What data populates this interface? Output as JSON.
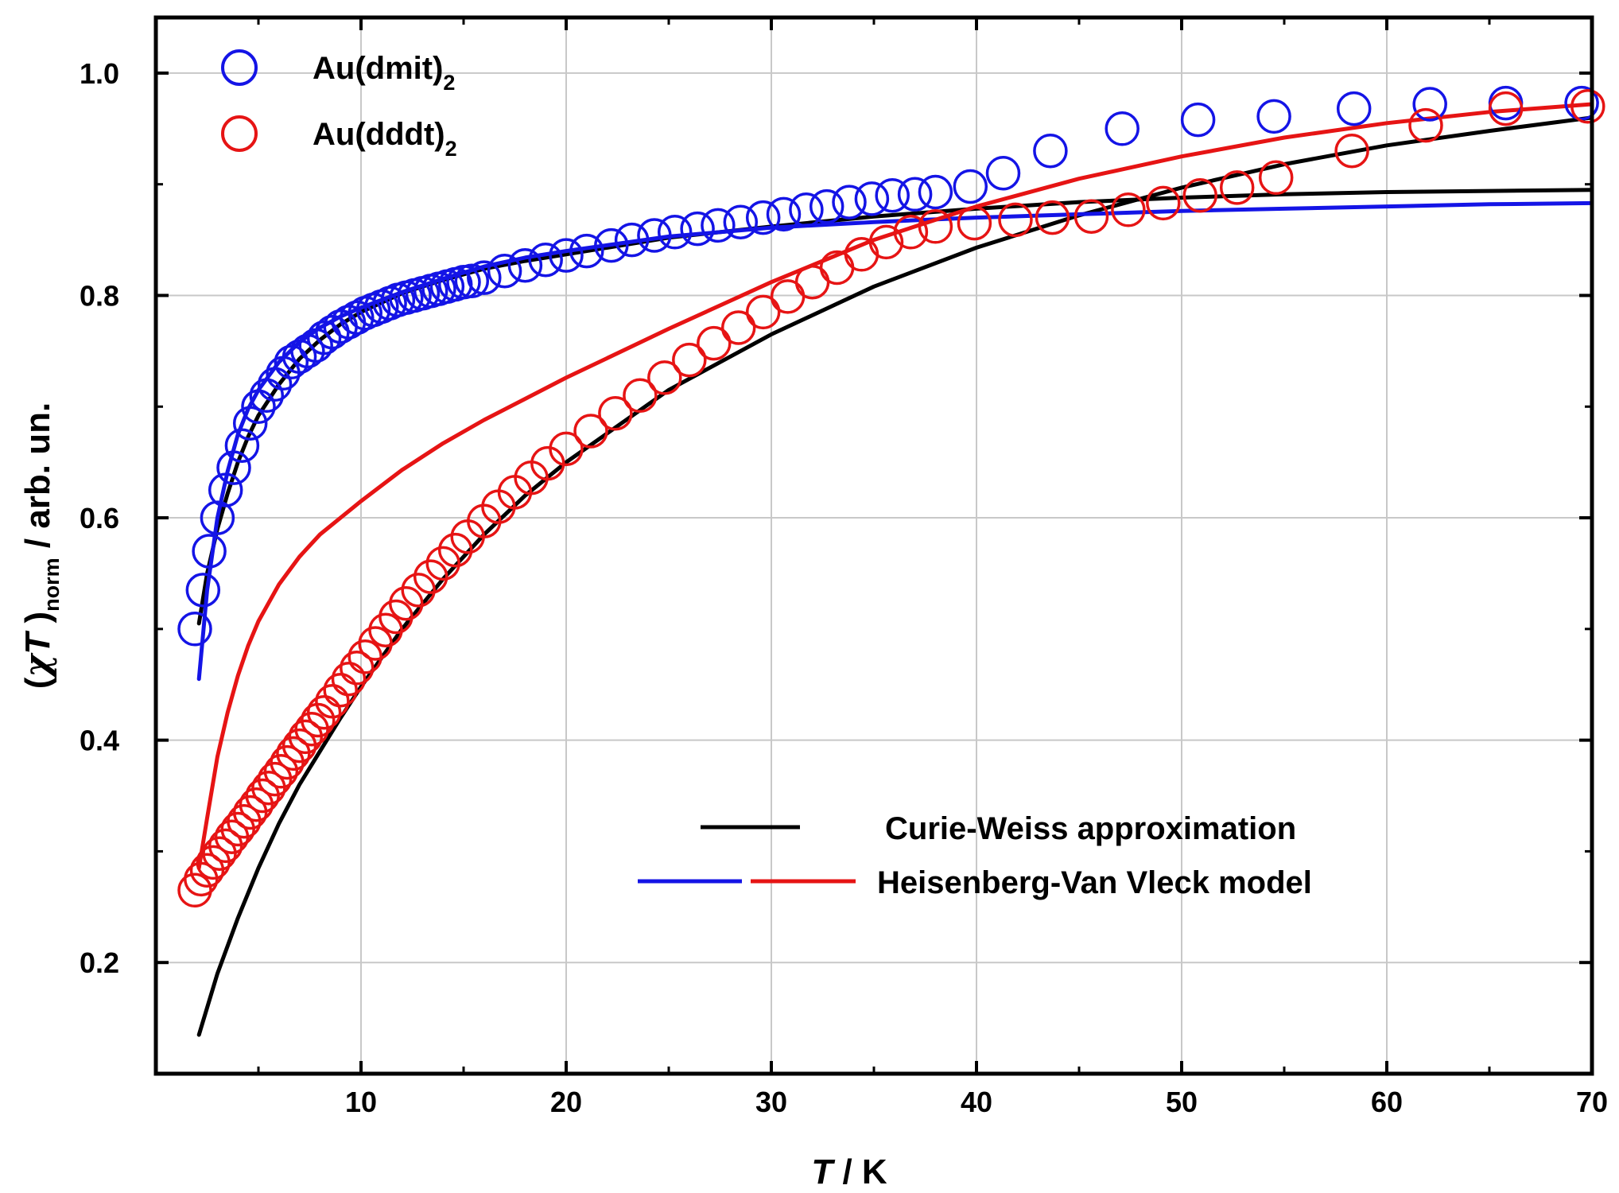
{
  "chart_data": {
    "type": "scatter",
    "title": "",
    "xlabel": {
      "var": "T",
      "unit": " / K"
    },
    "ylabel": {
      "open": "(",
      "chi": "χ",
      "T": "T",
      "close": " )",
      "sub": "norm",
      "unit": " / arb. un."
    },
    "xlim": [
      0,
      70
    ],
    "ylim": [
      0.1,
      1.05
    ],
    "xticks": [
      10,
      20,
      30,
      40,
      50,
      60,
      70
    ],
    "yticks": [
      0.2,
      0.4,
      0.6,
      0.8,
      1.0
    ],
    "ytick_labels": [
      "0.2",
      "0.4",
      "0.6",
      "0.8",
      "1.0"
    ],
    "xgrid": [
      10,
      20,
      30,
      40,
      50,
      60
    ],
    "ygrid": [
      0.2,
      0.4,
      0.6,
      0.8,
      1.0
    ],
    "grid": true,
    "colors": {
      "blue": "#1414e6",
      "red": "#e61414",
      "black": "#000000",
      "grid": "#c8c8c8"
    },
    "legend_markers": [
      {
        "name": "Au(dmit)",
        "sub": "2",
        "color": "#1414e6"
      },
      {
        "name": "Au(dddt)",
        "sub": "2",
        "color": "#e61414"
      }
    ],
    "legend_lines": [
      {
        "label": "Curie-Weiss approximation",
        "colors": [
          "#000000"
        ]
      },
      {
        "label": "Heisenberg-Van Vleck model",
        "colors": [
          "#1414e6",
          "#e61414"
        ]
      }
    ],
    "series": [
      {
        "name": "Au(dmit)2 data",
        "kind": "markers",
        "color": "#1414e6",
        "x": [
          1.9,
          2.3,
          2.6,
          3.0,
          3.4,
          3.8,
          4.2,
          4.6,
          5.0,
          5.4,
          5.8,
          6.2,
          6.6,
          7.0,
          7.4,
          7.8,
          8.2,
          8.6,
          9.0,
          9.4,
          9.8,
          10.2,
          10.6,
          11.0,
          11.4,
          11.8,
          12.2,
          12.6,
          13.0,
          13.4,
          13.8,
          14.2,
          14.6,
          15.0,
          15.4,
          16.0,
          17.0,
          18.0,
          19.0,
          20.0,
          21.0,
          22.2,
          23.2,
          24.3,
          25.3,
          26.4,
          27.4,
          28.5,
          29.6,
          30.6,
          31.7,
          32.7,
          33.8,
          34.9,
          35.9,
          37.0,
          38.0,
          39.7,
          41.3,
          43.6,
          47.1,
          50.8,
          54.5,
          58.4,
          62.1,
          65.8,
          69.5
        ],
        "y": [
          0.5,
          0.535,
          0.57,
          0.6,
          0.625,
          0.645,
          0.665,
          0.685,
          0.7,
          0.71,
          0.72,
          0.73,
          0.74,
          0.745,
          0.75,
          0.755,
          0.762,
          0.767,
          0.772,
          0.776,
          0.78,
          0.784,
          0.787,
          0.79,
          0.793,
          0.796,
          0.798,
          0.8,
          0.802,
          0.804,
          0.806,
          0.808,
          0.81,
          0.812,
          0.813,
          0.816,
          0.822,
          0.827,
          0.832,
          0.836,
          0.84,
          0.845,
          0.85,
          0.854,
          0.857,
          0.86,
          0.863,
          0.866,
          0.87,
          0.873,
          0.877,
          0.88,
          0.884,
          0.887,
          0.89,
          0.891,
          0.893,
          0.898,
          0.91,
          0.93,
          0.95,
          0.958,
          0.961,
          0.968,
          0.972,
          0.973,
          0.973
        ]
      },
      {
        "name": "Au(dddt)2 data",
        "kind": "markers",
        "color": "#e61414",
        "x": [
          1.9,
          2.2,
          2.5,
          2.8,
          3.1,
          3.4,
          3.7,
          4.0,
          4.3,
          4.6,
          4.9,
          5.2,
          5.5,
          5.8,
          6.1,
          6.4,
          6.7,
          7.0,
          7.3,
          7.6,
          7.9,
          8.2,
          8.6,
          9.0,
          9.4,
          9.8,
          10.2,
          10.7,
          11.2,
          11.7,
          12.2,
          12.8,
          13.4,
          14.0,
          14.6,
          15.2,
          16.0,
          16.7,
          17.5,
          18.3,
          19.1,
          20.0,
          21.2,
          22.4,
          23.6,
          24.8,
          26.0,
          27.2,
          28.4,
          29.6,
          30.8,
          32.0,
          33.2,
          34.4,
          35.6,
          36.8,
          38.0,
          39.9,
          41.9,
          43.7,
          45.6,
          47.4,
          49.1,
          50.9,
          52.7,
          54.6,
          58.3,
          61.9,
          65.8,
          69.8
        ],
        "y": [
          0.265,
          0.275,
          0.283,
          0.29,
          0.298,
          0.305,
          0.313,
          0.32,
          0.327,
          0.335,
          0.342,
          0.35,
          0.357,
          0.365,
          0.372,
          0.38,
          0.388,
          0.395,
          0.403,
          0.41,
          0.418,
          0.425,
          0.435,
          0.445,
          0.455,
          0.465,
          0.475,
          0.487,
          0.499,
          0.511,
          0.523,
          0.535,
          0.547,
          0.559,
          0.571,
          0.583,
          0.597,
          0.61,
          0.623,
          0.636,
          0.649,
          0.662,
          0.678,
          0.694,
          0.71,
          0.726,
          0.742,
          0.757,
          0.771,
          0.785,
          0.799,
          0.812,
          0.825,
          0.837,
          0.848,
          0.857,
          0.862,
          0.865,
          0.868,
          0.87,
          0.871,
          0.877,
          0.883,
          0.89,
          0.897,
          0.906,
          0.93,
          0.953,
          0.968,
          0.97
        ]
      },
      {
        "name": "Curie-Weiss approximation (Au(dmit)2)",
        "kind": "line",
        "color": "#000000",
        "x": [
          2.1,
          2.5,
          3,
          3.5,
          4,
          4.5,
          5,
          6,
          7,
          8,
          9,
          10,
          12,
          14,
          16,
          18,
          20,
          25,
          30,
          35,
          40,
          45,
          50,
          55,
          60,
          65,
          70
        ],
        "y": [
          0.505,
          0.55,
          0.59,
          0.622,
          0.65,
          0.673,
          0.692,
          0.72,
          0.743,
          0.76,
          0.774,
          0.785,
          0.802,
          0.814,
          0.824,
          0.831,
          0.837,
          0.852,
          0.862,
          0.871,
          0.878,
          0.884,
          0.888,
          0.891,
          0.893,
          0.894,
          0.895
        ]
      },
      {
        "name": "Curie-Weiss approximation (Au(dddt)2)",
        "kind": "line",
        "color": "#000000",
        "x": [
          2.1,
          3,
          4,
          5,
          6,
          7,
          8,
          9,
          10,
          12,
          14,
          16,
          18,
          20,
          25,
          30,
          35,
          40,
          45,
          50,
          55,
          60,
          65,
          70
        ],
        "y": [
          0.135,
          0.19,
          0.24,
          0.285,
          0.325,
          0.36,
          0.39,
          0.42,
          0.448,
          0.5,
          0.545,
          0.585,
          0.62,
          0.65,
          0.715,
          0.765,
          0.808,
          0.843,
          0.872,
          0.897,
          0.918,
          0.935,
          0.948,
          0.96
        ]
      },
      {
        "name": "Heisenberg-Van Vleck model (Au(dmit)2)",
        "kind": "line",
        "color": "#1414e6",
        "x": [
          2.1,
          2.5,
          3,
          3.5,
          4,
          4.5,
          5,
          6,
          7,
          8,
          9,
          10,
          12,
          14,
          16,
          18,
          20,
          25,
          30,
          35,
          40,
          45,
          50,
          55,
          60,
          65,
          70
        ],
        "y": [
          0.455,
          0.535,
          0.6,
          0.642,
          0.675,
          0.698,
          0.715,
          0.74,
          0.758,
          0.771,
          0.781,
          0.789,
          0.803,
          0.815,
          0.826,
          0.834,
          0.84,
          0.853,
          0.861,
          0.866,
          0.87,
          0.873,
          0.876,
          0.878,
          0.88,
          0.882,
          0.883
        ]
      },
      {
        "name": "Heisenberg-Van Vleck model (Au(dddt)2)",
        "kind": "line",
        "color": "#e61414",
        "x": [
          2.1,
          2.5,
          3,
          3.5,
          4,
          4.5,
          5,
          6,
          7,
          8,
          9,
          10,
          12,
          14,
          16,
          18,
          20,
          25,
          30,
          35,
          40,
          45,
          50,
          55,
          60,
          65,
          70
        ],
        "y": [
          0.285,
          0.33,
          0.385,
          0.425,
          0.458,
          0.485,
          0.507,
          0.54,
          0.565,
          0.585,
          0.6,
          0.615,
          0.643,
          0.667,
          0.688,
          0.707,
          0.726,
          0.77,
          0.812,
          0.85,
          0.88,
          0.905,
          0.925,
          0.942,
          0.955,
          0.965,
          0.972
        ]
      }
    ]
  }
}
